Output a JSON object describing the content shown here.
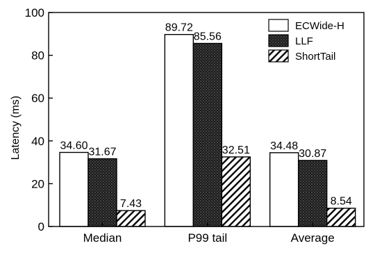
{
  "chart_data": {
    "type": "bar",
    "ylabel": "Latency (ms)",
    "ylim": [
      0,
      100
    ],
    "yticks": [
      0,
      20,
      40,
      60,
      80,
      100
    ],
    "categories": [
      "Median",
      "P99 tail",
      "Average"
    ],
    "series": [
      {
        "name": "ECWide-H",
        "values": [
          34.6,
          89.72,
          34.48
        ],
        "labels": [
          "34.60",
          "89.72",
          "34.48"
        ],
        "pattern": "white"
      },
      {
        "name": "LLF",
        "values": [
          31.67,
          85.56,
          30.87
        ],
        "labels": [
          "31.67",
          "85.56",
          "30.87"
        ],
        "pattern": "dots"
      },
      {
        "name": "ShortTail",
        "values": [
          7.43,
          32.51,
          8.54
        ],
        "labels": [
          "7.43",
          "32.51",
          "8.54"
        ],
        "pattern": "hatch"
      }
    ],
    "legend_position": "top-right",
    "grid": false
  }
}
